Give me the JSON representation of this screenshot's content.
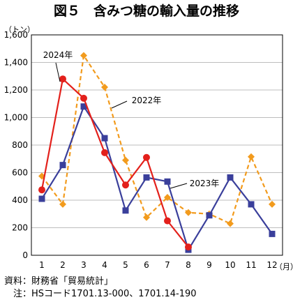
{
  "chart_data": {
    "type": "line",
    "title": "図５　含みつ糖の輸入量の推移",
    "ylabel": "（トン）",
    "xlabel": "（月）",
    "categories": [
      "1",
      "2",
      "3",
      "4",
      "5",
      "6",
      "7",
      "8",
      "9",
      "10",
      "11",
      "12"
    ],
    "ylim": [
      0,
      1600
    ],
    "yticks": [
      "0",
      "200",
      "400",
      "600",
      "800",
      "1,000",
      "1,200",
      "1,400",
      "1,600"
    ],
    "grid": true,
    "series": [
      {
        "name": "2022年",
        "color": "#f29b1d",
        "marker": "diamond",
        "dashed": true,
        "values": [
          575,
          370,
          1450,
          1220,
          690,
          275,
          420,
          310,
          300,
          230,
          715,
          370
        ]
      },
      {
        "name": "2023年",
        "color": "#3a3f9b",
        "marker": "square",
        "dashed": false,
        "values": [
          410,
          655,
          1080,
          850,
          325,
          565,
          535,
          40,
          290,
          565,
          370,
          155
        ]
      },
      {
        "name": "2024年",
        "color": "#e3201b",
        "marker": "circle",
        "dashed": false,
        "values": [
          475,
          1280,
          1140,
          745,
          510,
          710,
          250,
          60,
          null,
          null,
          null,
          null
        ]
      }
    ]
  },
  "footer": {
    "source": "資料：財務省「貿易統計」",
    "note": "　注：HSコード1701.13-000、1701.14-190"
  }
}
